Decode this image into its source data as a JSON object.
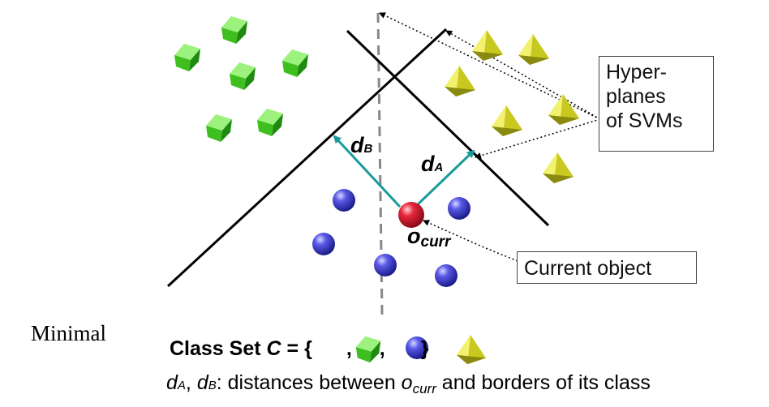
{
  "labels": {
    "d_b": "d",
    "d_b_sub": "B",
    "d_a": "d",
    "d_a_sub": "A",
    "o_curr": "o",
    "o_curr_sub": "curr"
  },
  "hyperplanes_box": [
    "Hyper-",
    "planes",
    "of SVMs"
  ],
  "current_object_box": "Current object",
  "minimal_label": "Minimal",
  "class_set": {
    "prefix": "Class Set ",
    "var": "C",
    "eq": " = {",
    "sep": ",",
    "close": "}"
  },
  "caption": {
    "dA": "d",
    "dA_sub": "A",
    "comma": ", ",
    "dB": "d",
    "dB_sub": "B",
    "colon": ": distances between ",
    "o": "o",
    "o_sub": "curr",
    "rest": " and borders of its class"
  },
  "colors": {
    "cube": "#44cc22",
    "sphere": "#4a4ad8",
    "current_object": "#e8283c",
    "pyramid": "#cccc22",
    "distance_arrow": "#1a9a9a"
  }
}
